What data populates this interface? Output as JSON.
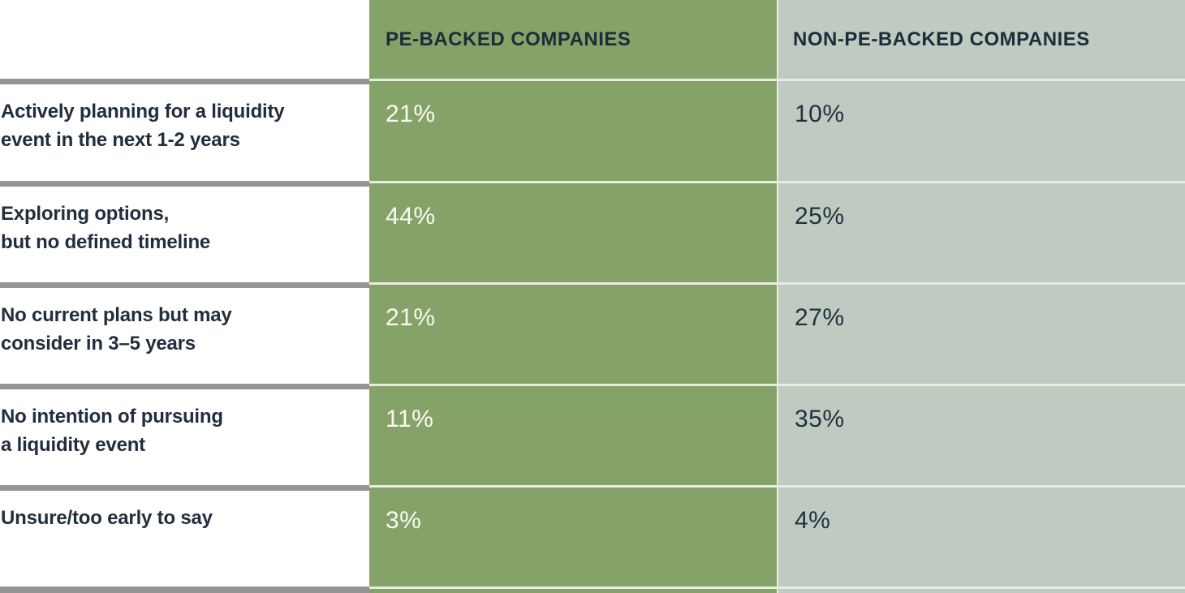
{
  "table": {
    "column_headers": [
      {
        "label": "PE-BACKED COMPANIES"
      },
      {
        "label": "NON-PE-BACKED COMPANIES"
      }
    ],
    "rows": [
      {
        "label": "Actively planning for a liquidity\nevent in the next 1-2 years",
        "pe_value": "21%",
        "non_pe_value": "10%"
      },
      {
        "label": "Exploring options,\nbut no defined timeline",
        "pe_value": "44%",
        "non_pe_value": "25%"
      },
      {
        "label": "No current plans but may\nconsider in 3–5 years",
        "pe_value": "21%",
        "non_pe_value": "27%"
      },
      {
        "label": "No intention of pursuing\na liquidity event",
        "pe_value": "11%",
        "non_pe_value": "35%"
      },
      {
        "label": "Unsure/too early to say",
        "pe_value": "3%",
        "non_pe_value": "4%"
      }
    ]
  },
  "chart_data": {
    "type": "table",
    "title": "",
    "categories": [
      "Actively planning for a liquidity event in the next 1-2 years",
      "Exploring options, but no defined timeline",
      "No current plans but may consider in 3–5 years",
      "No intention of pursuing a liquidity event",
      "Unsure/too early to say"
    ],
    "series": [
      {
        "name": "PE-BACKED COMPANIES",
        "values": [
          21,
          44,
          21,
          11,
          3
        ]
      },
      {
        "name": "NON-PE-BACKED COMPANIES",
        "values": [
          10,
          25,
          27,
          35,
          4
        ]
      }
    ],
    "value_unit": "%"
  },
  "colors": {
    "pe_column_bg": "#85A369",
    "non_pe_column_bg": "#BFCAC1",
    "header_text": "#1D2B3A",
    "row_label_text": "#212E3E",
    "pe_value_text": "#FBFAF3",
    "non_pe_value_text": "#22303E",
    "gray_row_divider": "#959595",
    "cream_cell_divider": "#ECEBDF",
    "background": "#FFFFFF"
  }
}
